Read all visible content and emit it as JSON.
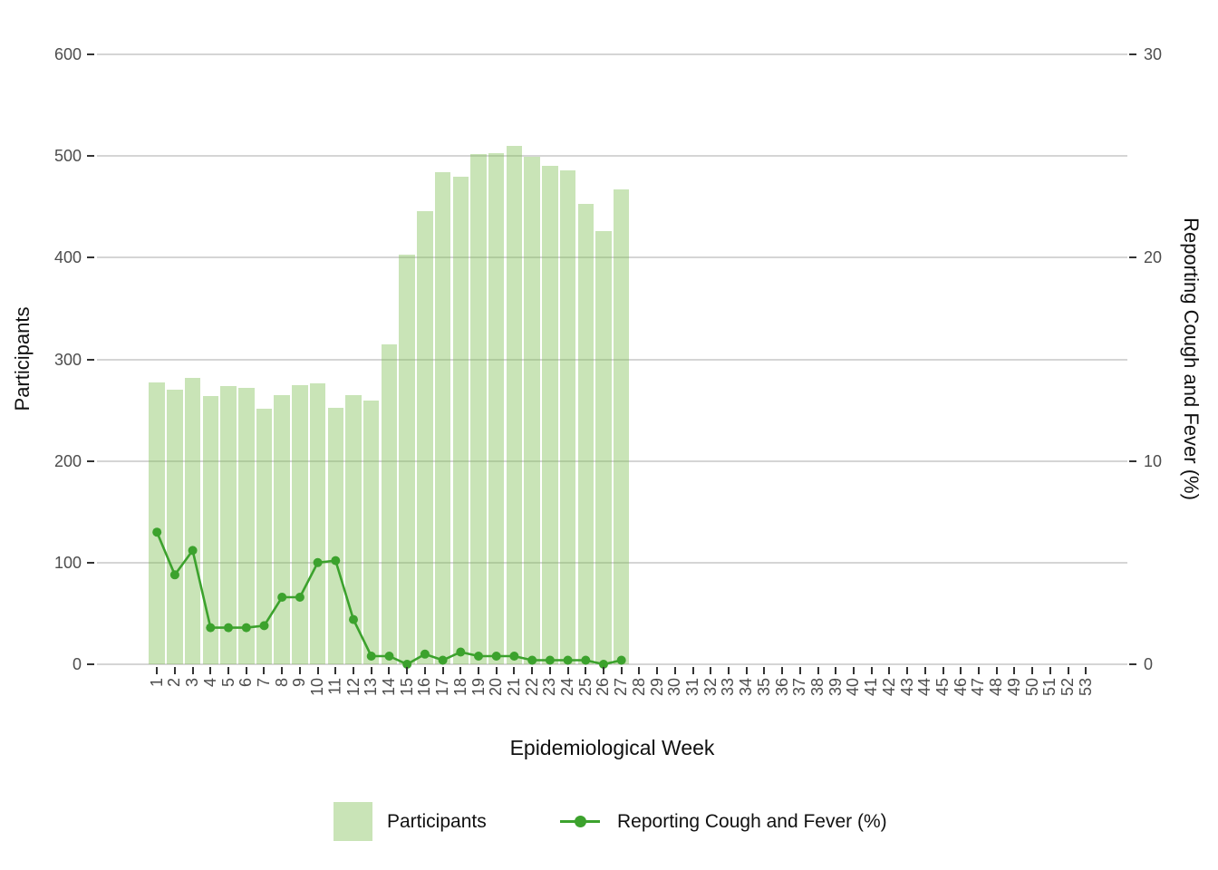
{
  "chart_data": {
    "type": "combo",
    "title": "",
    "x_axis": {
      "label": "Epidemiological Week",
      "categories": [
        1,
        2,
        3,
        4,
        5,
        6,
        7,
        8,
        9,
        10,
        11,
        12,
        13,
        14,
        15,
        16,
        17,
        18,
        19,
        20,
        21,
        22,
        23,
        24,
        25,
        26,
        27,
        28,
        29,
        30,
        31,
        32,
        33,
        34,
        35,
        36,
        37,
        38,
        39,
        40,
        41,
        42,
        43,
        44,
        45,
        46,
        47,
        48,
        49,
        50,
        51,
        52,
        53
      ]
    },
    "y_left": {
      "label": "Participants",
      "ticks": [
        0,
        100,
        200,
        300,
        400,
        500,
        600
      ],
      "lim": [
        0,
        600
      ]
    },
    "y_right": {
      "label": "Reporting Cough and Fever (%)",
      "ticks": [
        0,
        10,
        20,
        30
      ],
      "lim": [
        0,
        30
      ]
    },
    "grid": "horizontal-major-only",
    "legend_position": "bottom",
    "series": [
      {
        "name": "Participants",
        "type": "bar",
        "axis": "left",
        "weeks": [
          1,
          2,
          3,
          4,
          5,
          6,
          7,
          8,
          9,
          10,
          11,
          12,
          13,
          14,
          15,
          16,
          17,
          18,
          19,
          20,
          21,
          22,
          23,
          24,
          25,
          26,
          27
        ],
        "values": [
          277,
          270,
          282,
          264,
          274,
          272,
          251,
          265,
          275,
          276,
          252,
          265,
          259,
          315,
          403,
          446,
          484,
          480,
          502,
          503,
          510,
          499,
          490,
          486,
          453,
          426,
          467
        ]
      },
      {
        "name": "Reporting Cough and Fever (%)",
        "type": "line",
        "axis": "right",
        "weeks": [
          1,
          2,
          3,
          4,
          5,
          6,
          7,
          8,
          9,
          10,
          11,
          12,
          13,
          14,
          15,
          16,
          17,
          18,
          19,
          20,
          21,
          22,
          23,
          24,
          25,
          26,
          27
        ],
        "values": [
          6.5,
          4.4,
          5.6,
          1.8,
          1.8,
          1.8,
          1.9,
          3.3,
          3.3,
          5.0,
          5.1,
          2.2,
          0.4,
          0.4,
          0.0,
          0.5,
          0.2,
          0.6,
          0.4,
          0.4,
          0.4,
          0.2,
          0.2,
          0.2,
          0.2,
          0.0,
          0.2
        ]
      }
    ]
  },
  "legend": {
    "items": [
      {
        "label": "Participants",
        "swatch": "bar-fill"
      },
      {
        "label": "Reporting Cough and Fever (%)",
        "swatch": "line-with-point"
      }
    ]
  },
  "colors": {
    "bar_fill_rgba": "rgba(127,190,84,0.42)",
    "bar_fill_flat": "#C9E4BC",
    "line_color": "#3CA22D",
    "grid_color": "#D5D5D5",
    "tick_mark_color": "#333333",
    "tick_label_color": "#4D4D4D",
    "axis_title_color": "#111111",
    "background": "#FFFFFF"
  }
}
